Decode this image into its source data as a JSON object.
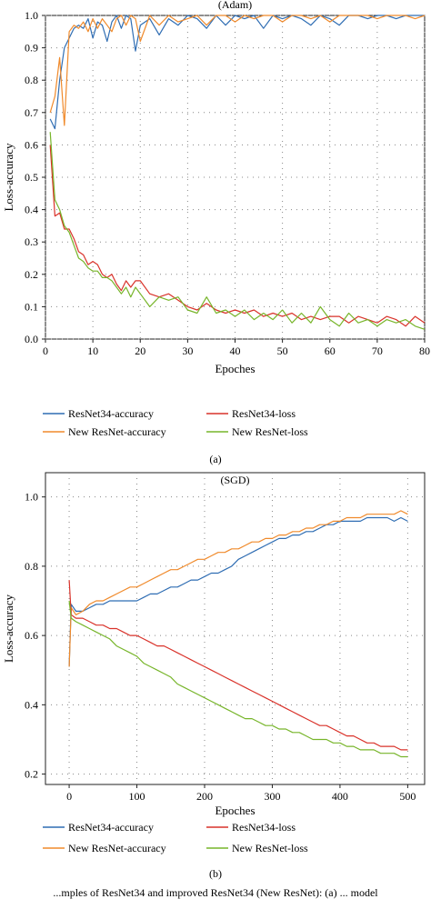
{
  "figure": {
    "caption_a": "(a)",
    "caption_b": "(b)",
    "bottom_caption": "...mples of ResNet34 and improved ResNet34 (New ResNet): (a) ... model"
  },
  "legend_entries": [
    {
      "label": "ResNet34-accuracy",
      "color": "#2f6db3"
    },
    {
      "label": "ResNet34-loss",
      "color": "#d9322a"
    },
    {
      "label": "New ResNet-accuracy",
      "color": "#f08a2b"
    },
    {
      "label": "New ResNet-loss",
      "color": "#77b52a"
    }
  ],
  "chart_data": [
    {
      "type": "line",
      "title": "(Adam)",
      "xlabel": "Epoches",
      "ylabel": "Loss-accuracy",
      "xlim": [
        0,
        80
      ],
      "ylim": [
        0.0,
        1.0
      ],
      "xticks": [
        "0",
        "10",
        "20",
        "30",
        "40",
        "50",
        "60",
        "70",
        "80"
      ],
      "yticks": [
        "0.0",
        "0.1",
        "0.2",
        "0.3",
        "0.4",
        "0.5",
        "0.6",
        "0.7",
        "0.8",
        "0.9",
        "1.0"
      ],
      "grid": true,
      "legend": "below",
      "series": [
        {
          "name": "ResNet34-accuracy",
          "color": "#2f6db3",
          "x": [
            1,
            2,
            3,
            4,
            5,
            6,
            7,
            8,
            9,
            10,
            11,
            12,
            13,
            14,
            15,
            16,
            17,
            18,
            19,
            20,
            22,
            24,
            26,
            28,
            30,
            32,
            34,
            36,
            38,
            40,
            42,
            44,
            46,
            48,
            50,
            52,
            54,
            56,
            58,
            60,
            62,
            64,
            66,
            68,
            70,
            72,
            74,
            76,
            78,
            80
          ],
          "y": [
            0.68,
            0.65,
            0.8,
            0.9,
            0.93,
            0.96,
            0.97,
            0.96,
            0.99,
            0.93,
            0.98,
            0.97,
            0.92,
            0.98,
            1.0,
            0.96,
            1.0,
            0.99,
            0.89,
            0.97,
            0.99,
            0.94,
            0.99,
            0.97,
            1.0,
            0.99,
            0.96,
            1.0,
            0.97,
            1.0,
            0.99,
            1.0,
            0.96,
            1.0,
            0.99,
            1.0,
            0.99,
            0.97,
            1.0,
            0.99,
            0.97,
            1.0,
            1.0,
            0.99,
            1.0,
            1.0,
            0.99,
            1.0,
            1.0,
            1.0
          ]
        },
        {
          "name": "New ResNet-accuracy",
          "color": "#f08a2b",
          "x": [
            1,
            2,
            3,
            4,
            5,
            6,
            7,
            8,
            9,
            10,
            11,
            12,
            13,
            14,
            15,
            16,
            17,
            18,
            19,
            20,
            22,
            24,
            26,
            28,
            30,
            32,
            34,
            36,
            38,
            40,
            42,
            44,
            46,
            48,
            50,
            52,
            54,
            56,
            58,
            60,
            62,
            64,
            66,
            68,
            70,
            72,
            74,
            76,
            78,
            80
          ],
          "y": [
            0.7,
            0.75,
            0.87,
            0.66,
            0.95,
            0.97,
            0.96,
            0.98,
            0.95,
            0.99,
            0.96,
            0.99,
            0.97,
            0.95,
            0.99,
            1.0,
            0.97,
            1.0,
            0.99,
            0.92,
            1.0,
            0.97,
            1.0,
            0.98,
            0.99,
            1.0,
            0.97,
            1.0,
            1.0,
            0.98,
            1.0,
            0.99,
            1.0,
            1.0,
            0.98,
            1.0,
            1.0,
            0.99,
            1.0,
            0.98,
            1.0,
            1.0,
            1.0,
            1.0,
            0.99,
            1.0,
            1.0,
            1.0,
            0.99,
            1.0
          ]
        },
        {
          "name": "ResNet34-loss",
          "color": "#d9322a",
          "x": [
            1,
            2,
            3,
            4,
            5,
            6,
            7,
            8,
            9,
            10,
            11,
            12,
            13,
            14,
            15,
            16,
            17,
            18,
            19,
            20,
            22,
            24,
            26,
            28,
            30,
            32,
            34,
            36,
            38,
            40,
            42,
            44,
            46,
            48,
            50,
            52,
            54,
            56,
            58,
            60,
            62,
            64,
            66,
            68,
            70,
            72,
            74,
            76,
            78,
            80
          ],
          "y": [
            0.6,
            0.38,
            0.39,
            0.34,
            0.34,
            0.31,
            0.27,
            0.26,
            0.23,
            0.24,
            0.23,
            0.2,
            0.19,
            0.2,
            0.17,
            0.15,
            0.18,
            0.16,
            0.18,
            0.18,
            0.14,
            0.13,
            0.14,
            0.12,
            0.1,
            0.09,
            0.11,
            0.09,
            0.08,
            0.09,
            0.08,
            0.09,
            0.07,
            0.08,
            0.07,
            0.08,
            0.06,
            0.07,
            0.06,
            0.07,
            0.07,
            0.05,
            0.07,
            0.06,
            0.05,
            0.07,
            0.06,
            0.04,
            0.07,
            0.05
          ]
        },
        {
          "name": "New ResNet-loss",
          "color": "#77b52a",
          "x": [
            1,
            2,
            3,
            4,
            5,
            6,
            7,
            8,
            9,
            10,
            11,
            12,
            13,
            14,
            15,
            16,
            17,
            18,
            19,
            20,
            22,
            24,
            26,
            28,
            30,
            32,
            34,
            36,
            38,
            40,
            42,
            44,
            46,
            48,
            50,
            52,
            54,
            56,
            58,
            60,
            62,
            64,
            66,
            68,
            70,
            72,
            74,
            76,
            78,
            80
          ],
          "y": [
            0.64,
            0.43,
            0.4,
            0.35,
            0.33,
            0.29,
            0.25,
            0.24,
            0.22,
            0.21,
            0.21,
            0.19,
            0.19,
            0.18,
            0.16,
            0.14,
            0.16,
            0.13,
            0.16,
            0.14,
            0.1,
            0.13,
            0.12,
            0.13,
            0.09,
            0.08,
            0.13,
            0.08,
            0.09,
            0.07,
            0.09,
            0.06,
            0.08,
            0.06,
            0.09,
            0.05,
            0.08,
            0.05,
            0.1,
            0.06,
            0.04,
            0.08,
            0.05,
            0.06,
            0.04,
            0.06,
            0.05,
            0.06,
            0.04,
            0.03
          ]
        }
      ]
    },
    {
      "type": "line",
      "title": "(SGD)",
      "xlabel": "Epoches",
      "ylabel": "Loss-accuracy",
      "xlim": [
        -35,
        525
      ],
      "ylim": [
        0.17,
        1.07
      ],
      "xticks": [
        "0",
        "100",
        "200",
        "300",
        "400",
        "500"
      ],
      "xtick_values": [
        0,
        100,
        200,
        300,
        400,
        500
      ],
      "yticks": [
        "0.2",
        "0.4",
        "0.6",
        "0.8",
        "1.0"
      ],
      "ytick_values": [
        0.2,
        0.4,
        0.6,
        0.8,
        1.0
      ],
      "grid": true,
      "legend": "below",
      "series": [
        {
          "name": "ResNet34-accuracy",
          "color": "#2f6db3",
          "x": [
            0,
            3,
            10,
            20,
            30,
            40,
            50,
            60,
            70,
            80,
            90,
            100,
            110,
            120,
            130,
            140,
            150,
            160,
            170,
            180,
            190,
            200,
            210,
            220,
            230,
            240,
            250,
            260,
            270,
            280,
            290,
            300,
            310,
            320,
            330,
            340,
            350,
            360,
            370,
            380,
            390,
            400,
            410,
            420,
            430,
            440,
            450,
            460,
            470,
            480,
            490,
            500
          ],
          "y": [
            0.51,
            0.69,
            0.67,
            0.67,
            0.68,
            0.69,
            0.69,
            0.7,
            0.7,
            0.7,
            0.7,
            0.7,
            0.71,
            0.72,
            0.72,
            0.73,
            0.74,
            0.74,
            0.75,
            0.76,
            0.76,
            0.77,
            0.78,
            0.78,
            0.79,
            0.8,
            0.82,
            0.83,
            0.84,
            0.85,
            0.86,
            0.87,
            0.88,
            0.88,
            0.89,
            0.89,
            0.9,
            0.9,
            0.91,
            0.92,
            0.92,
            0.93,
            0.93,
            0.93,
            0.93,
            0.94,
            0.94,
            0.94,
            0.94,
            0.93,
            0.94,
            0.93
          ]
        },
        {
          "name": "New ResNet-accuracy",
          "color": "#f08a2b",
          "x": [
            0,
            3,
            10,
            20,
            30,
            40,
            50,
            60,
            70,
            80,
            90,
            100,
            110,
            120,
            130,
            140,
            150,
            160,
            170,
            180,
            190,
            200,
            210,
            220,
            230,
            240,
            250,
            260,
            270,
            280,
            290,
            300,
            310,
            320,
            330,
            340,
            350,
            360,
            370,
            380,
            390,
            400,
            410,
            420,
            430,
            440,
            450,
            460,
            470,
            480,
            490,
            500
          ],
          "y": [
            0.51,
            0.68,
            0.66,
            0.67,
            0.69,
            0.7,
            0.7,
            0.71,
            0.72,
            0.73,
            0.74,
            0.74,
            0.75,
            0.76,
            0.77,
            0.78,
            0.79,
            0.79,
            0.8,
            0.81,
            0.82,
            0.82,
            0.83,
            0.84,
            0.84,
            0.85,
            0.85,
            0.86,
            0.87,
            0.87,
            0.88,
            0.88,
            0.89,
            0.89,
            0.9,
            0.9,
            0.91,
            0.91,
            0.92,
            0.92,
            0.93,
            0.93,
            0.94,
            0.94,
            0.94,
            0.95,
            0.95,
            0.95,
            0.95,
            0.95,
            0.96,
            0.95
          ]
        },
        {
          "name": "ResNet34-loss",
          "color": "#d9322a",
          "x": [
            0,
            3,
            10,
            20,
            30,
            40,
            50,
            60,
            70,
            80,
            90,
            100,
            110,
            120,
            130,
            140,
            150,
            160,
            170,
            180,
            190,
            200,
            210,
            220,
            230,
            240,
            250,
            260,
            270,
            280,
            290,
            300,
            310,
            320,
            330,
            340,
            350,
            360,
            370,
            380,
            390,
            400,
            410,
            420,
            430,
            440,
            450,
            460,
            470,
            480,
            490,
            500
          ],
          "y": [
            0.76,
            0.66,
            0.65,
            0.65,
            0.64,
            0.63,
            0.63,
            0.62,
            0.62,
            0.61,
            0.6,
            0.6,
            0.59,
            0.58,
            0.57,
            0.57,
            0.56,
            0.55,
            0.54,
            0.53,
            0.52,
            0.51,
            0.5,
            0.49,
            0.48,
            0.47,
            0.46,
            0.45,
            0.44,
            0.43,
            0.42,
            0.41,
            0.4,
            0.39,
            0.38,
            0.37,
            0.36,
            0.35,
            0.34,
            0.34,
            0.33,
            0.32,
            0.31,
            0.31,
            0.3,
            0.29,
            0.29,
            0.28,
            0.28,
            0.28,
            0.27,
            0.27
          ]
        },
        {
          "name": "New ResNet-loss",
          "color": "#77b52a",
          "x": [
            0,
            3,
            10,
            20,
            30,
            40,
            50,
            60,
            70,
            80,
            90,
            100,
            110,
            120,
            130,
            140,
            150,
            160,
            170,
            180,
            190,
            200,
            210,
            220,
            230,
            240,
            250,
            260,
            270,
            280,
            290,
            300,
            310,
            320,
            330,
            340,
            350,
            360,
            370,
            380,
            390,
            400,
            410,
            420,
            430,
            440,
            450,
            460,
            470,
            480,
            490,
            500
          ],
          "y": [
            0.7,
            0.65,
            0.64,
            0.63,
            0.62,
            0.61,
            0.6,
            0.59,
            0.57,
            0.56,
            0.55,
            0.54,
            0.52,
            0.51,
            0.5,
            0.49,
            0.48,
            0.46,
            0.45,
            0.44,
            0.43,
            0.42,
            0.41,
            0.4,
            0.39,
            0.38,
            0.37,
            0.36,
            0.36,
            0.35,
            0.34,
            0.34,
            0.33,
            0.33,
            0.32,
            0.32,
            0.31,
            0.3,
            0.3,
            0.3,
            0.29,
            0.29,
            0.28,
            0.28,
            0.27,
            0.27,
            0.27,
            0.26,
            0.26,
            0.26,
            0.25,
            0.25
          ]
        }
      ]
    }
  ]
}
